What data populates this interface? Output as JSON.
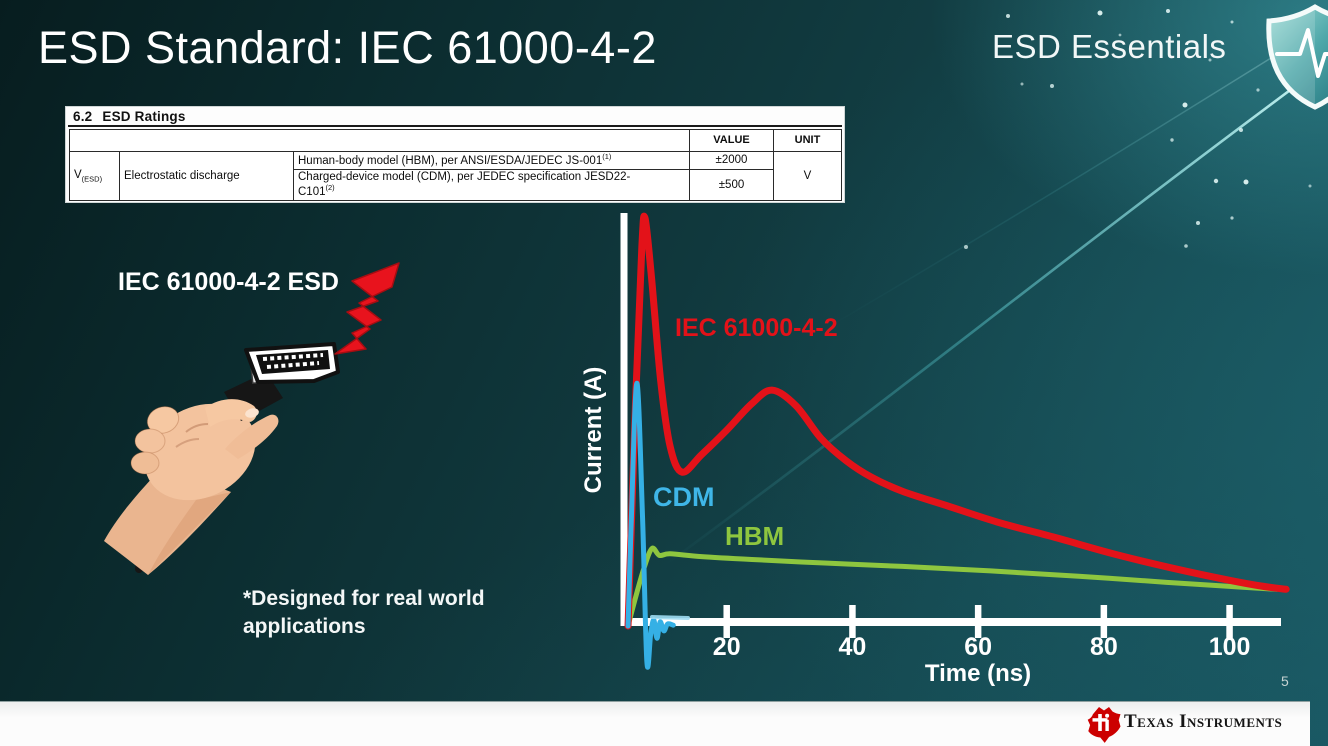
{
  "slide": {
    "title": "ESD Standard: IEC 61000-4-2",
    "program": "ESD Essentials",
    "page_number": "5",
    "illustration_label": "IEC 61000-4-2 ESD",
    "footnote": "*Designed for real world\napplications"
  },
  "ratings_table": {
    "section_number": "6.2",
    "section_title": "ESD Ratings",
    "value_header": "VALUE",
    "unit_header": "UNIT",
    "symbol": "V",
    "symbol_subscript": "(ESD)",
    "parameter": "Electrostatic discharge",
    "rows": [
      {
        "description": "Human-body model (HBM), per ANSI/ESDA/JEDEC JS-001",
        "superscript": "(1)",
        "value": "±2000"
      },
      {
        "description_line1": "Charged-device model (CDM), per JEDEC specification JESD22-",
        "description_line2": "C101",
        "superscript": "(2)",
        "value": "±500"
      }
    ],
    "unit": "V"
  },
  "footer": {
    "brand": "Texas Instruments"
  },
  "chart_data": {
    "type": "line",
    "title": "",
    "xlabel": "Time (ns)",
    "ylabel": "Current (A)",
    "x_ticks": [
      20,
      40,
      60,
      80,
      100
    ],
    "xlim": [
      0,
      110
    ],
    "ylim": [
      0,
      1.05
    ],
    "y_axis_unlabeled": true,
    "legend_position": "inline-labels",
    "grid": false,
    "series": [
      {
        "id": "iec",
        "name": "IEC 61000-4-2",
        "color": "#e31219",
        "width": 7,
        "points": [
          [
            4.3,
            0
          ],
          [
            5.5,
            0.55
          ],
          [
            6.5,
            0.93
          ],
          [
            7.0,
            1.0
          ],
          [
            8.0,
            0.86
          ],
          [
            9.5,
            0.6
          ],
          [
            11.0,
            0.44
          ],
          [
            12.9,
            0.377
          ],
          [
            16,
            0.42
          ],
          [
            20,
            0.48
          ],
          [
            24,
            0.545
          ],
          [
            27.2,
            0.578
          ],
          [
            31,
            0.54
          ],
          [
            35,
            0.46
          ],
          [
            39,
            0.405
          ],
          [
            43,
            0.365
          ],
          [
            48,
            0.33
          ],
          [
            55,
            0.295
          ],
          [
            63,
            0.255
          ],
          [
            72,
            0.218
          ],
          [
            82,
            0.175
          ],
          [
            92,
            0.138
          ],
          [
            100,
            0.112
          ],
          [
            105,
            0.098
          ],
          [
            109,
            0.09
          ]
        ]
      },
      {
        "id": "cdm",
        "name": "CDM",
        "color": "#35b0e5",
        "width": 5,
        "points": [
          [
            4.3,
            0
          ],
          [
            4.8,
            0.25
          ],
          [
            5.7,
            0.595
          ],
          [
            6.6,
            0.27
          ],
          [
            7.3,
            -0.088
          ],
          [
            7.9,
            -0.02
          ],
          [
            8.4,
            0.015
          ],
          [
            8.9,
            -0.03
          ],
          [
            9.4,
            0.01
          ],
          [
            10.0,
            -0.012
          ],
          [
            10.6,
            0.005
          ],
          [
            11.5,
            0.002
          ]
        ]
      },
      {
        "id": "hbm",
        "name": "HBM",
        "color": "#8ec63f",
        "width": 5,
        "points": [
          [
            4.3,
            0
          ],
          [
            5.5,
            0.07
          ],
          [
            6.8,
            0.14
          ],
          [
            8.1,
            0.19
          ],
          [
            9.3,
            0.173
          ],
          [
            11,
            0.177
          ],
          [
            16,
            0.17
          ],
          [
            24,
            0.163
          ],
          [
            36,
            0.154
          ],
          [
            48,
            0.146
          ],
          [
            62,
            0.135
          ],
          [
            76,
            0.122
          ],
          [
            90,
            0.107
          ],
          [
            100,
            0.097
          ],
          [
            107.5,
            0.09
          ]
        ]
      }
    ]
  }
}
